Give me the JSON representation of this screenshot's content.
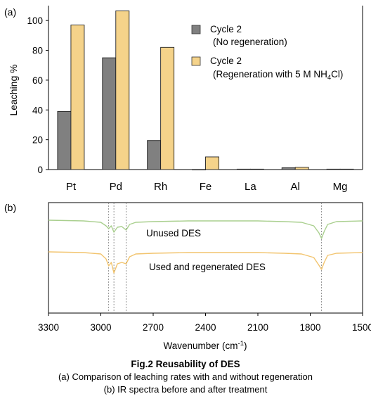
{
  "figure": {
    "title": "Fig.2 Reusability of DES",
    "caption_a": "(a)  Comparison of leaching rates with and without regeneration",
    "caption_b": "(b)  IR spectra before and after treatment"
  },
  "chart_data": [
    {
      "type": "bar",
      "panel_label": "(a)",
      "categories": [
        "Pt",
        "Pd",
        "Rh",
        "Fe",
        "La",
        "Al",
        "Mg"
      ],
      "ylabel": "Leaching %",
      "ylim": [
        0,
        110
      ],
      "yticks": [
        0,
        20,
        40,
        60,
        80,
        100
      ],
      "grid": false,
      "legend_position": "top-right",
      "series": [
        {
          "name": "Cycle 2",
          "name_note": "(No regeneration)",
          "color": "#808080",
          "values": [
            39,
            75,
            19.5,
            0,
            0.3,
            1.2,
            0.3
          ]
        },
        {
          "name": "Cycle 2",
          "name_note_prefix": "(Regeneration with 5 M NH",
          "name_note_sub": "4",
          "name_note_suffix": "Cl)",
          "color": "#F5D38A",
          "values": [
            97,
            106.5,
            82,
            8.5,
            0.3,
            1.5,
            0.3
          ]
        }
      ]
    },
    {
      "type": "line",
      "panel_label": "(b)",
      "xlabel_prefix": "Wavenumber (cm",
      "xlabel_sup": "-1",
      "xlabel_suffix": ")",
      "xlim": [
        3300,
        1500
      ],
      "xticks": [
        3300,
        3000,
        2700,
        2400,
        2100,
        1800,
        1500
      ],
      "reference_lines": [
        2955,
        2925,
        2855,
        1735
      ],
      "series": [
        {
          "name": "Unused DES",
          "color": "#A9CF8E",
          "x": [
            3300,
            3100,
            3000,
            2970,
            2955,
            2940,
            2925,
            2905,
            2880,
            2855,
            2835,
            2800,
            2700,
            2500,
            2300,
            2100,
            1950,
            1850,
            1780,
            1750,
            1735,
            1720,
            1700,
            1650,
            1500
          ],
          "y": [
            0,
            -1,
            -3,
            -8,
            -12,
            -8,
            -17,
            -10,
            -9,
            -14,
            -6,
            -3,
            -2,
            -1,
            -1,
            -1,
            -2,
            -3,
            -8,
            -18,
            -26,
            -16,
            -6,
            -2,
            -1
          ]
        },
        {
          "name": "Used and regenerated DES",
          "color": "#F2C46E",
          "x": [
            3300,
            3100,
            3000,
            2970,
            2955,
            2940,
            2925,
            2905,
            2880,
            2855,
            2835,
            2800,
            2700,
            2500,
            2300,
            2100,
            1950,
            1850,
            1780,
            1750,
            1735,
            1720,
            1700,
            1650,
            1500
          ],
          "y": [
            -45,
            -46,
            -48,
            -55,
            -65,
            -60,
            -75,
            -62,
            -60,
            -62,
            -52,
            -48,
            -47,
            -46,
            -46,
            -46,
            -47,
            -48,
            -53,
            -64,
            -70,
            -60,
            -50,
            -47,
            -46
          ]
        }
      ]
    }
  ]
}
